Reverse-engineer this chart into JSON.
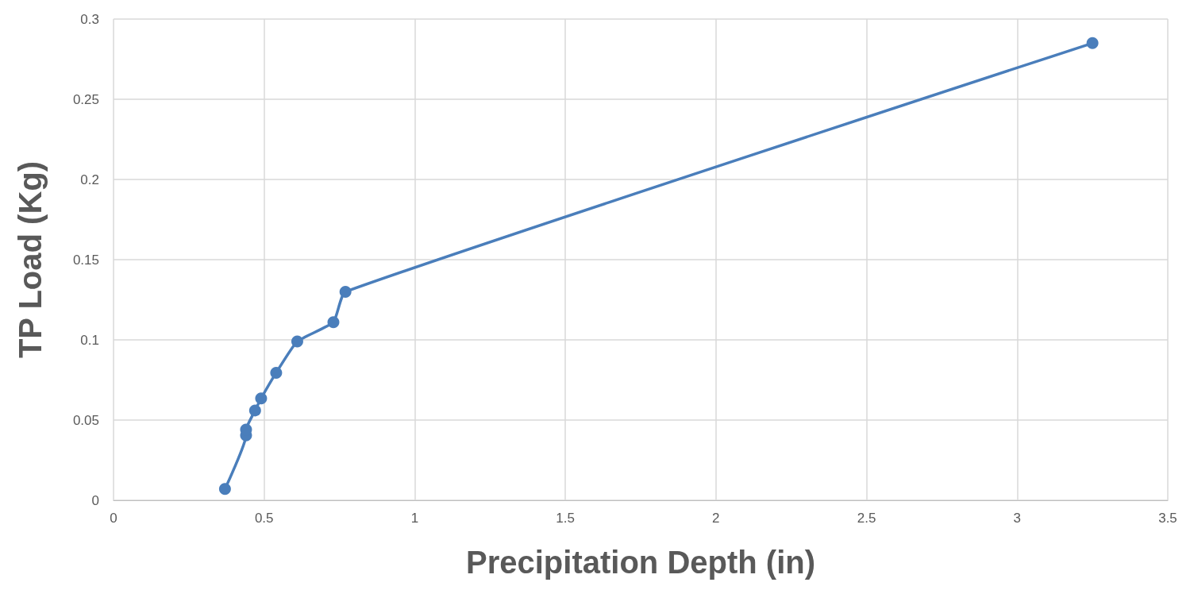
{
  "chart_data": {
    "type": "line",
    "xlabel": "Precipitation Depth (in)",
    "ylabel": "TP Load (Kg)",
    "x": [
      0.37,
      0.44,
      0.44,
      0.47,
      0.49,
      0.54,
      0.61,
      0.73,
      0.77,
      3.25
    ],
    "series": [
      {
        "color": "#4a7ebb",
        "values": [
          0.007,
          0.0405,
          0.044,
          0.056,
          0.0635,
          0.0795,
          0.099,
          0.111,
          0.13,
          0.285
        ]
      }
    ],
    "xlim": [
      0,
      3.5
    ],
    "xticks": [
      0,
      0.5,
      1,
      1.5,
      2,
      2.5,
      3,
      3.5
    ],
    "ylim": [
      0,
      0.3
    ],
    "yticks": [
      0,
      0.05,
      0.1,
      0.15,
      0.2,
      0.25,
      0.3
    ],
    "grid": true,
    "marker": "circle",
    "line_style": "solid"
  }
}
